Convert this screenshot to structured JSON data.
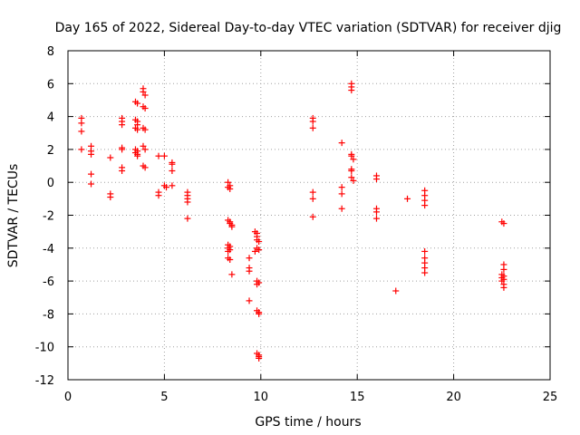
{
  "chart_data": {
    "type": "scatter",
    "title": "Day 165 of 2022, Sidereal Day-to-day VTEC variation (SDTVAR) for receiver djig",
    "xlabel": "GPS time / hours",
    "ylabel": "SDTVAR / TECUs",
    "xlim": [
      0,
      25
    ],
    "ylim": [
      -12,
      8
    ],
    "xticks": [
      0,
      5,
      10,
      15,
      20,
      25
    ],
    "yticks": [
      -12,
      -10,
      -8,
      -6,
      -4,
      -2,
      0,
      2,
      4,
      6,
      8
    ],
    "grid": true,
    "marker": "+",
    "color": "#ff0000",
    "points": [
      [
        0.7,
        3.9
      ],
      [
        0.7,
        3.6
      ],
      [
        0.7,
        3.1
      ],
      [
        0.7,
        2.0
      ],
      [
        1.2,
        2.2
      ],
      [
        1.2,
        1.9
      ],
      [
        1.2,
        1.7
      ],
      [
        1.2,
        0.5
      ],
      [
        1.2,
        -0.1
      ],
      [
        2.2,
        1.5
      ],
      [
        2.2,
        -0.7
      ],
      [
        2.2,
        -0.9
      ],
      [
        2.8,
        3.9
      ],
      [
        2.8,
        3.7
      ],
      [
        2.8,
        3.5
      ],
      [
        2.8,
        2.1
      ],
      [
        2.8,
        2.0
      ],
      [
        2.8,
        0.9
      ],
      [
        2.8,
        0.7
      ],
      [
        3.5,
        4.9
      ],
      [
        3.6,
        4.8
      ],
      [
        3.5,
        3.8
      ],
      [
        3.6,
        3.7
      ],
      [
        3.6,
        3.5
      ],
      [
        3.5,
        3.3
      ],
      [
        3.6,
        3.2
      ],
      [
        3.5,
        2.0
      ],
      [
        3.6,
        1.9
      ],
      [
        3.5,
        1.8
      ],
      [
        3.6,
        1.7
      ],
      [
        3.6,
        1.6
      ],
      [
        3.9,
        5.7
      ],
      [
        3.9,
        5.5
      ],
      [
        4.0,
        5.3
      ],
      [
        3.9,
        4.6
      ],
      [
        4.0,
        4.5
      ],
      [
        3.9,
        3.3
      ],
      [
        4.0,
        3.2
      ],
      [
        3.9,
        2.2
      ],
      [
        4.0,
        2.0
      ],
      [
        3.9,
        1.0
      ],
      [
        4.0,
        0.9
      ],
      [
        4.7,
        1.6
      ],
      [
        4.7,
        -0.6
      ],
      [
        4.7,
        -0.8
      ],
      [
        5.0,
        1.6
      ],
      [
        5.0,
        -0.2
      ],
      [
        5.1,
        -0.3
      ],
      [
        5.4,
        1.2
      ],
      [
        5.4,
        1.1
      ],
      [
        5.4,
        0.7
      ],
      [
        5.4,
        -0.2
      ],
      [
        6.2,
        -0.6
      ],
      [
        6.2,
        -0.8
      ],
      [
        6.2,
        -1.0
      ],
      [
        6.2,
        -1.2
      ],
      [
        6.2,
        -2.2
      ],
      [
        8.3,
        0.0
      ],
      [
        8.4,
        -0.2
      ],
      [
        8.3,
        -0.3
      ],
      [
        8.4,
        -0.4
      ],
      [
        8.3,
        -2.3
      ],
      [
        8.4,
        -2.4
      ],
      [
        8.4,
        -2.5
      ],
      [
        8.5,
        -2.6
      ],
      [
        8.5,
        -2.7
      ],
      [
        8.3,
        -3.8
      ],
      [
        8.4,
        -3.9
      ],
      [
        8.3,
        -4.0
      ],
      [
        8.4,
        -4.1
      ],
      [
        8.3,
        -4.2
      ],
      [
        8.3,
        -4.6
      ],
      [
        8.4,
        -4.7
      ],
      [
        8.5,
        -5.6
      ],
      [
        9.4,
        -4.6
      ],
      [
        9.4,
        -5.2
      ],
      [
        9.4,
        -5.4
      ],
      [
        9.4,
        -7.2
      ],
      [
        9.7,
        -3.0
      ],
      [
        9.8,
        -3.1
      ],
      [
        9.8,
        -3.3
      ],
      [
        9.8,
        -3.5
      ],
      [
        9.9,
        -3.6
      ],
      [
        9.8,
        -4.0
      ],
      [
        9.9,
        -4.1
      ],
      [
        9.7,
        -4.2
      ],
      [
        9.8,
        -6.0
      ],
      [
        9.9,
        -6.1
      ],
      [
        9.8,
        -6.2
      ],
      [
        9.8,
        -7.8
      ],
      [
        9.9,
        -7.9
      ],
      [
        9.9,
        -8.0
      ],
      [
        9.8,
        -10.4
      ],
      [
        9.9,
        -10.5
      ],
      [
        9.9,
        -10.6
      ],
      [
        9.9,
        -10.7
      ],
      [
        12.7,
        3.9
      ],
      [
        12.7,
        3.7
      ],
      [
        12.7,
        3.3
      ],
      [
        12.7,
        -0.6
      ],
      [
        12.7,
        -1.0
      ],
      [
        12.7,
        -2.1
      ],
      [
        14.2,
        2.4
      ],
      [
        14.2,
        -0.3
      ],
      [
        14.2,
        -0.7
      ],
      [
        14.2,
        -1.6
      ],
      [
        14.7,
        6.0
      ],
      [
        14.7,
        5.8
      ],
      [
        14.7,
        5.6
      ],
      [
        14.7,
        1.7
      ],
      [
        14.7,
        1.6
      ],
      [
        14.8,
        1.4
      ],
      [
        14.7,
        0.8
      ],
      [
        14.7,
        0.7
      ],
      [
        14.7,
        0.3
      ],
      [
        14.8,
        0.1
      ],
      [
        16.0,
        0.4
      ],
      [
        16.0,
        0.2
      ],
      [
        16.0,
        -1.6
      ],
      [
        16.0,
        -1.8
      ],
      [
        16.0,
        -2.2
      ],
      [
        17.0,
        -6.6
      ],
      [
        17.6,
        -1.0
      ],
      [
        18.5,
        -0.5
      ],
      [
        18.5,
        -0.8
      ],
      [
        18.5,
        -1.1
      ],
      [
        18.5,
        -1.4
      ],
      [
        18.5,
        -4.2
      ],
      [
        18.5,
        -4.6
      ],
      [
        18.5,
        -4.9
      ],
      [
        18.5,
        -5.2
      ],
      [
        18.5,
        -5.5
      ],
      [
        22.5,
        -2.4
      ],
      [
        22.6,
        -2.5
      ],
      [
        22.6,
        -5.0
      ],
      [
        22.6,
        -5.3
      ],
      [
        22.5,
        -5.6
      ],
      [
        22.6,
        -5.7
      ],
      [
        22.5,
        -5.8
      ],
      [
        22.6,
        -5.9
      ],
      [
        22.5,
        -6.0
      ],
      [
        22.6,
        -6.2
      ],
      [
        22.6,
        -6.4
      ]
    ]
  }
}
